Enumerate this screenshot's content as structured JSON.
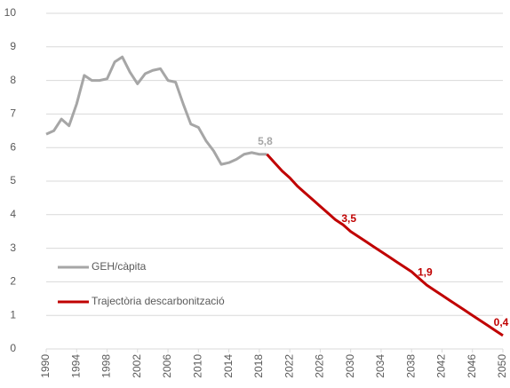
{
  "chart_data": {
    "type": "line",
    "x": [
      1990,
      1991,
      1992,
      1993,
      1994,
      1995,
      1996,
      1997,
      1998,
      1999,
      2000,
      2001,
      2002,
      2003,
      2004,
      2005,
      2006,
      2007,
      2008,
      2009,
      2010,
      2011,
      2012,
      2013,
      2014,
      2015,
      2016,
      2017,
      2018,
      2019,
      2020,
      2021,
      2022,
      2023,
      2024,
      2025,
      2026,
      2027,
      2028,
      2029,
      2030,
      2031,
      2032,
      2033,
      2034,
      2035,
      2036,
      2037,
      2038,
      2039,
      2040,
      2041,
      2042,
      2043,
      2044,
      2045,
      2046,
      2047,
      2048,
      2049,
      2050
    ],
    "series": [
      {
        "name": "GEH/càpita",
        "color": "#a6a6a6",
        "values": [
          6.4,
          6.5,
          6.85,
          6.65,
          7.3,
          8.15,
          8.0,
          8.0,
          8.05,
          8.55,
          8.7,
          8.25,
          7.9,
          8.2,
          8.3,
          8.35,
          8.0,
          7.95,
          7.3,
          6.7,
          6.6,
          6.2,
          5.9,
          5.5,
          5.55,
          5.65,
          5.8,
          5.85,
          5.8,
          5.8,
          null,
          null,
          null,
          null,
          null,
          null,
          null,
          null,
          null,
          null,
          null,
          null,
          null,
          null,
          null,
          null,
          null,
          null,
          null,
          null,
          null,
          null,
          null,
          null,
          null,
          null,
          null,
          null,
          null,
          null,
          null
        ],
        "value_labels": [
          null,
          null,
          null,
          null,
          null,
          null,
          null,
          null,
          null,
          null,
          null,
          null,
          null,
          null,
          null,
          null,
          null,
          null,
          null,
          null,
          null,
          null,
          null,
          null,
          null,
          null,
          null,
          null,
          null,
          "5,8",
          null,
          null,
          null,
          null,
          null,
          null,
          null,
          null,
          null,
          null,
          null,
          null,
          null,
          null,
          null,
          null,
          null,
          null,
          null,
          null,
          null,
          null,
          null,
          null,
          null,
          null,
          null,
          null,
          null,
          null,
          null
        ]
      },
      {
        "name": "Trajectòria descarbonització",
        "color": "#c00000",
        "values": [
          null,
          null,
          null,
          null,
          null,
          null,
          null,
          null,
          null,
          null,
          null,
          null,
          null,
          null,
          null,
          null,
          null,
          null,
          null,
          null,
          null,
          null,
          null,
          null,
          null,
          null,
          null,
          null,
          null,
          5.8,
          5.55,
          5.3,
          5.1,
          4.85,
          4.65,
          4.45,
          4.25,
          4.05,
          3.85,
          3.7,
          3.5,
          3.35,
          3.2,
          3.05,
          2.9,
          2.75,
          2.6,
          2.45,
          2.3,
          2.1,
          1.9,
          1.75,
          1.6,
          1.45,
          1.3,
          1.15,
          1.0,
          0.85,
          0.7,
          0.55,
          0.4
        ],
        "value_labels": [
          null,
          null,
          null,
          null,
          null,
          null,
          null,
          null,
          null,
          null,
          null,
          null,
          null,
          null,
          null,
          null,
          null,
          null,
          null,
          null,
          null,
          null,
          null,
          null,
          null,
          null,
          null,
          null,
          null,
          null,
          null,
          null,
          null,
          null,
          null,
          null,
          null,
          null,
          null,
          null,
          "3,5",
          null,
          null,
          null,
          null,
          null,
          null,
          null,
          null,
          null,
          "1,9",
          null,
          null,
          null,
          null,
          null,
          null,
          null,
          null,
          null,
          "0,4"
        ]
      }
    ],
    "xlim": [
      1990,
      2050
    ],
    "xticks": [
      1990,
      1994,
      1998,
      2002,
      2006,
      2010,
      2014,
      2018,
      2022,
      2026,
      2030,
      2034,
      2038,
      2042,
      2046,
      2050
    ],
    "ylim": [
      0,
      10
    ],
    "yticks": [
      0,
      1,
      2,
      3,
      4,
      5,
      6,
      7,
      8,
      9,
      10
    ],
    "grid": true,
    "legend": "lower left"
  }
}
